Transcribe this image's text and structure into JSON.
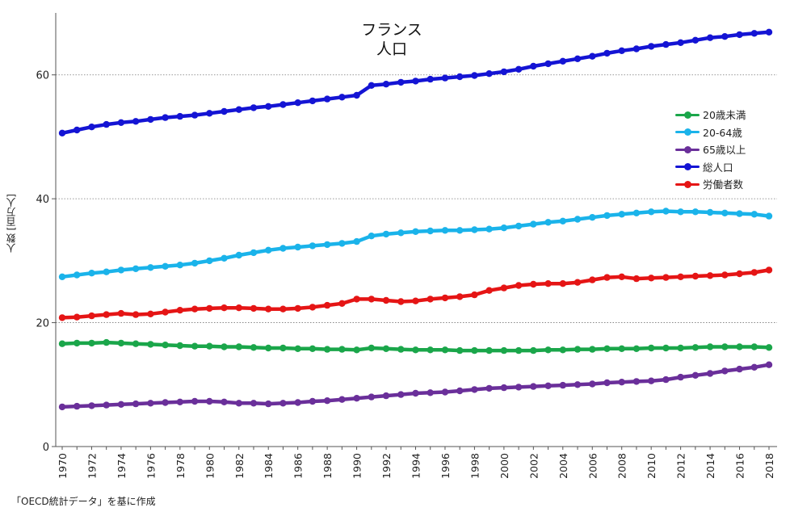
{
  "chart_data": {
    "type": "line",
    "title": "フランス",
    "subtitle": "人口",
    "ylabel": "人数 [百万人]",
    "xlabel": "",
    "ylim": [
      0,
      70
    ],
    "yticks": [
      0,
      20,
      40,
      60
    ],
    "grid": "horizontal dotted at 20, 40, 60",
    "legend_position": "right",
    "x": [
      1970,
      1971,
      1972,
      1973,
      1974,
      1975,
      1976,
      1977,
      1978,
      1979,
      1980,
      1981,
      1982,
      1983,
      1984,
      1985,
      1986,
      1987,
      1988,
      1989,
      1990,
      1991,
      1992,
      1993,
      1994,
      1995,
      1996,
      1997,
      1998,
      1999,
      2000,
      2001,
      2002,
      2003,
      2004,
      2005,
      2006,
      2007,
      2008,
      2009,
      2010,
      2011,
      2012,
      2013,
      2014,
      2015,
      2016,
      2017,
      2018
    ],
    "xtick_labels": [
      "1970",
      "1972",
      "1974",
      "1976",
      "1978",
      "1980",
      "1982",
      "1984",
      "1986",
      "1988",
      "1990",
      "1992",
      "1994",
      "1996",
      "1998",
      "2000",
      "2002",
      "2004",
      "2006",
      "2008",
      "2010",
      "2012",
      "2014",
      "2016",
      "2018"
    ],
    "series": [
      {
        "name": "20歳未満",
        "color": "#1aa64a",
        "values": [
          16.6,
          16.7,
          16.7,
          16.8,
          16.7,
          16.6,
          16.5,
          16.4,
          16.3,
          16.2,
          16.2,
          16.1,
          16.1,
          16.0,
          15.9,
          15.9,
          15.8,
          15.8,
          15.7,
          15.7,
          15.6,
          15.9,
          15.8,
          15.7,
          15.6,
          15.6,
          15.6,
          15.5,
          15.5,
          15.5,
          15.5,
          15.5,
          15.5,
          15.6,
          15.6,
          15.7,
          15.7,
          15.8,
          15.8,
          15.8,
          15.9,
          15.9,
          15.9,
          16.0,
          16.1,
          16.1,
          16.1,
          16.1,
          16.0
        ]
      },
      {
        "name": "20-64歳",
        "color": "#1ab3ea",
        "values": [
          27.4,
          27.7,
          28.0,
          28.2,
          28.5,
          28.7,
          28.9,
          29.1,
          29.3,
          29.6,
          30.0,
          30.4,
          30.9,
          31.3,
          31.7,
          32.0,
          32.2,
          32.4,
          32.6,
          32.8,
          33.1,
          34.0,
          34.3,
          34.5,
          34.7,
          34.8,
          34.9,
          34.9,
          35.0,
          35.1,
          35.3,
          35.6,
          35.9,
          36.2,
          36.4,
          36.7,
          37.0,
          37.3,
          37.5,
          37.7,
          37.9,
          38.0,
          37.9,
          37.9,
          37.8,
          37.7,
          37.6,
          37.5,
          37.2
        ]
      },
      {
        "name": "65歳以上",
        "color": "#6a2f9a",
        "values": [
          6.4,
          6.5,
          6.6,
          6.7,
          6.8,
          6.9,
          7.0,
          7.1,
          7.2,
          7.3,
          7.3,
          7.2,
          7.0,
          7.0,
          6.9,
          7.0,
          7.1,
          7.3,
          7.4,
          7.6,
          7.8,
          8.0,
          8.2,
          8.4,
          8.6,
          8.7,
          8.8,
          9.0,
          9.2,
          9.4,
          9.5,
          9.6,
          9.7,
          9.8,
          9.9,
          10.0,
          10.1,
          10.3,
          10.4,
          10.5,
          10.6,
          10.8,
          11.2,
          11.5,
          11.8,
          12.2,
          12.5,
          12.8,
          13.2
        ]
      },
      {
        "name": "総人口",
        "color": "#1414d4",
        "values": [
          50.6,
          51.1,
          51.6,
          52.0,
          52.3,
          52.5,
          52.8,
          53.1,
          53.3,
          53.5,
          53.8,
          54.1,
          54.4,
          54.7,
          54.9,
          55.2,
          55.5,
          55.8,
          56.1,
          56.4,
          56.7,
          58.3,
          58.5,
          58.8,
          59.0,
          59.3,
          59.5,
          59.7,
          59.9,
          60.2,
          60.5,
          60.9,
          61.4,
          61.8,
          62.2,
          62.6,
          63.0,
          63.5,
          63.9,
          64.2,
          64.6,
          64.9,
          65.2,
          65.6,
          66.0,
          66.2,
          66.5,
          66.7,
          66.9
        ]
      },
      {
        "name": "労働者数",
        "color": "#e51515",
        "values": [
          20.8,
          20.9,
          21.1,
          21.3,
          21.5,
          21.3,
          21.4,
          21.7,
          22.0,
          22.2,
          22.3,
          22.4,
          22.4,
          22.3,
          22.2,
          22.2,
          22.3,
          22.5,
          22.8,
          23.1,
          23.8,
          23.8,
          23.6,
          23.4,
          23.5,
          23.8,
          24.0,
          24.2,
          24.5,
          25.2,
          25.6,
          26.0,
          26.2,
          26.3,
          26.3,
          26.5,
          26.9,
          27.3,
          27.4,
          27.1,
          27.2,
          27.3,
          27.4,
          27.5,
          27.6,
          27.7,
          27.9,
          28.1,
          28.5
        ]
      }
    ]
  },
  "source_note": "「OECD統計データ」を基に作成"
}
